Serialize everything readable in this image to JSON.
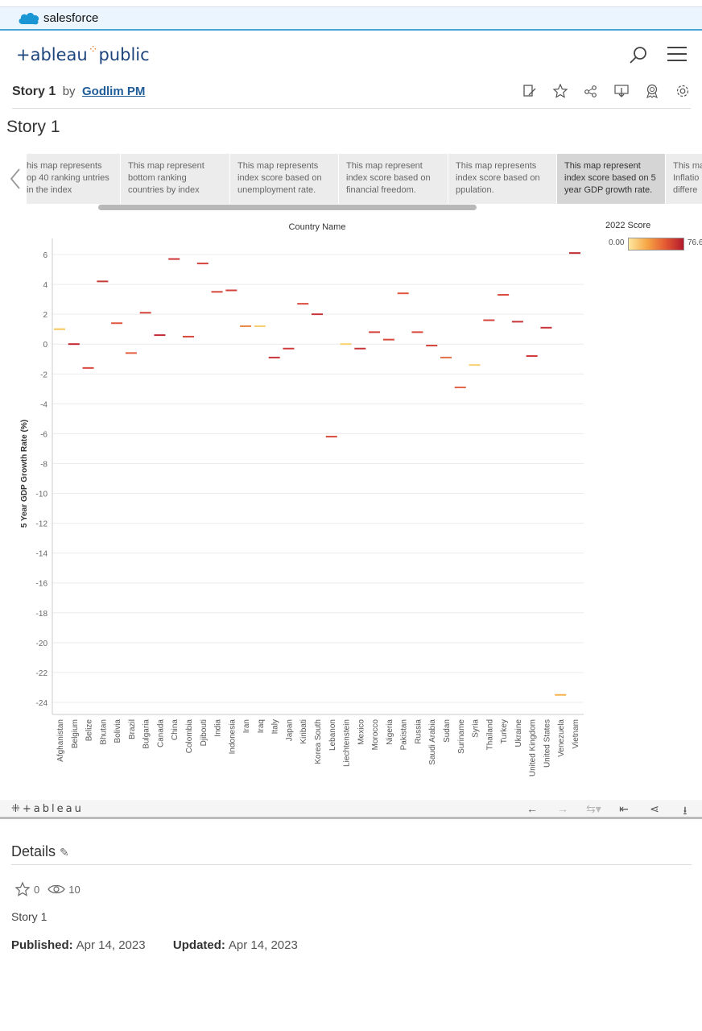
{
  "brand": {
    "salesforce": "salesforce",
    "logo_main": "+ableau",
    "logo_sub": "public"
  },
  "story": {
    "title": "Story 1",
    "by": "by",
    "author": "Godlim PM"
  },
  "viz": {
    "title": "Story 1"
  },
  "story_points": [
    "his map represents op 40 ranking untries in the index",
    "This map represent bottom ranking countries by index",
    "This map represents index score based on unemployment rate.",
    "This map represent index score based on financial freedom.",
    "This map represents index score based on ppulation.",
    "This map represent index score based on 5 year GDP growth rate.",
    "This ma Inflatio differe"
  ],
  "legend": {
    "title": "2022 Score",
    "min": "0.00",
    "max": "76.6"
  },
  "chart_data": {
    "type": "scatter",
    "title": "Country Name",
    "xlabel": "",
    "ylabel": "5 Year GDP Growth Rate (%)",
    "ylim": [
      -25,
      7
    ],
    "yticks": [
      6,
      4,
      2,
      0,
      -2,
      -4,
      -6,
      -8,
      -10,
      -12,
      -14,
      -16,
      -18,
      -20,
      -22,
      -24
    ],
    "categories": [
      "Afghanistan",
      "Belgium",
      "Belize",
      "Bhutan",
      "Bolivia",
      "Brazil",
      "Bulgaria",
      "Canada",
      "China",
      "Colombia",
      "Djibouti",
      "India",
      "Indonesia",
      "Iran",
      "Iraq",
      "Italy",
      "Japan",
      "Kiribati",
      "Korea South",
      "Lebanon",
      "Liechtenstein",
      "Mexico",
      "Morocco",
      "Nigeria",
      "Pakistan",
      "Russia",
      "Saudi Arabia",
      "Sudan",
      "Suriname",
      "Syria",
      "Thailand",
      "Turkey",
      "Ukraine",
      "United Kingdom",
      "United States",
      "Venezuela",
      "Vietnam"
    ],
    "values": [
      1.0,
      0.0,
      -1.6,
      4.2,
      1.4,
      -0.6,
      2.1,
      0.6,
      5.7,
      0.5,
      5.4,
      3.5,
      3.6,
      1.2,
      1.2,
      -0.9,
      -0.3,
      2.7,
      2.0,
      -6.2,
      0.0,
      -0.3,
      0.8,
      0.3,
      3.4,
      0.8,
      -0.1,
      -0.9,
      -2.9,
      -1.4,
      1.6,
      3.3,
      1.5,
      -0.8,
      1.1,
      -23.5,
      6.1
    ],
    "colors": [
      "#f6c659",
      "#c32630",
      "#d9483a",
      "#c63c35",
      "#e0553c",
      "#e46243",
      "#d4423a",
      "#c22b32",
      "#cd3337",
      "#d9483a",
      "#d4423a",
      "#d5473a",
      "#d4423a",
      "#e8884a",
      "#f6cf74",
      "#c9333a",
      "#cf3c3a",
      "#d9483a",
      "#c9333a",
      "#d9483a",
      "#f8d070",
      "#c9333a",
      "#d4423a",
      "#d9483a",
      "#e0553c",
      "#d9483a",
      "#d4423a",
      "#e4704a",
      "#e46243",
      "#f8d070",
      "#d4423a",
      "#d9483a",
      "#c9333a",
      "#cf3c3a",
      "#c9333a",
      "#f6b14c",
      "#c22b32"
    ]
  },
  "toolbar": {
    "logo": "+ableau"
  },
  "details": {
    "heading": "Details",
    "stars": "0",
    "views": "10",
    "story_name": "Story 1",
    "published_label": "Published:",
    "published": "Apr 14, 2023",
    "updated_label": "Updated:",
    "updated": "Apr 14, 2023"
  }
}
